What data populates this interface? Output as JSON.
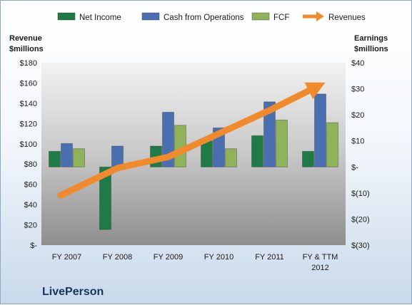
{
  "chart_data": {
    "type": "bar",
    "company": "LivePerson",
    "categories": [
      [
        "FY 2007"
      ],
      [
        "FY 2008"
      ],
      [
        "FY 2009"
      ],
      [
        "FY 2010"
      ],
      [
        "FY 2011"
      ],
      [
        "FY & TTM",
        "2012"
      ]
    ],
    "left_axis": {
      "title": [
        "Revenue",
        "$millions"
      ],
      "ylim": [
        0,
        180
      ],
      "ticks": [
        0,
        20,
        40,
        60,
        80,
        100,
        120,
        140,
        160,
        180
      ],
      "tick_labels": [
        "$-",
        "$20",
        "$40",
        "$60",
        "$80",
        "$100",
        "$120",
        "$140",
        "$160",
        "$180"
      ]
    },
    "right_axis": {
      "title": [
        "Earnings",
        "$millions"
      ],
      "ylim": [
        -30,
        40
      ],
      "ticks": [
        -30,
        -20,
        -10,
        0,
        10,
        20,
        30,
        40
      ],
      "tick_labels": [
        "$(30)",
        "$(20)",
        "$(10)",
        "$-",
        "$10",
        "$20",
        "$30",
        "$40"
      ]
    },
    "series": [
      {
        "name": "Net Income",
        "type": "bar",
        "axis": "right",
        "color": "#1e7a46",
        "values": [
          6,
          -24,
          8,
          10,
          12,
          6
        ]
      },
      {
        "name": "Cash from Operations",
        "type": "bar",
        "axis": "right",
        "color": "#4a6fb0",
        "values": [
          9,
          8,
          21,
          15,
          25,
          28
        ]
      },
      {
        "name": "FCF",
        "type": "bar",
        "axis": "right",
        "color": "#8fb35a",
        "values": [
          7,
          1,
          16,
          7,
          18,
          17
        ]
      },
      {
        "name": "Revenues",
        "type": "line-arrow",
        "axis": "left",
        "color": "#f08a2c",
        "values": [
          52,
          76,
          87,
          110,
          133,
          158
        ]
      }
    ],
    "legend_position": "top",
    "grid": false
  }
}
